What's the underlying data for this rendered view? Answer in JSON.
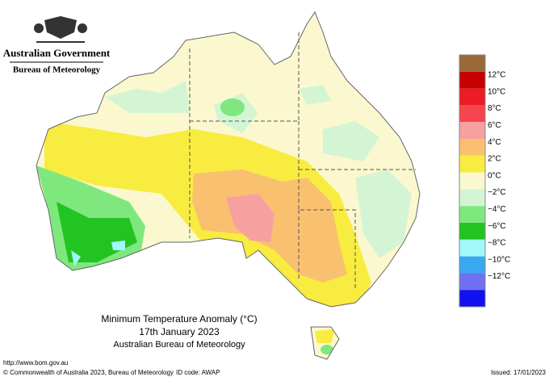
{
  "header": {
    "government": "Australian Government",
    "bureau": "Bureau of Meteorology"
  },
  "title": {
    "line1": "Minimum Temperature Anomaly (°C)",
    "line2": "17th January 2023",
    "line3": "Australian Bureau of Meteorology"
  },
  "legend": {
    "colors": [
      "#9a6a3a",
      "#c40000",
      "#ec1c24",
      "#f5454f",
      "#f7a0a0",
      "#f9c070",
      "#f8ec40",
      "#fbf8d0",
      "#d4f5d4",
      "#7ee87e",
      "#22c422",
      "#a0f8f8",
      "#38a8f0",
      "#7070f0",
      "#1010f0"
    ],
    "labels": [
      "12°C",
      "10°C",
      "8°C",
      "6°C",
      "4°C",
      "2°C",
      "0°C",
      "−2°C",
      "−4°C",
      "−6°C",
      "−8°C",
      "−10°C",
      "−12°C"
    ]
  },
  "footer": {
    "url": "http://www.bom.gov.au",
    "copyright": "© Commonwealth of Australia 2023, Bureau of Meteorology",
    "id_code": "ID code: AWAP",
    "issued": "Issued: 17/01/2023"
  }
}
